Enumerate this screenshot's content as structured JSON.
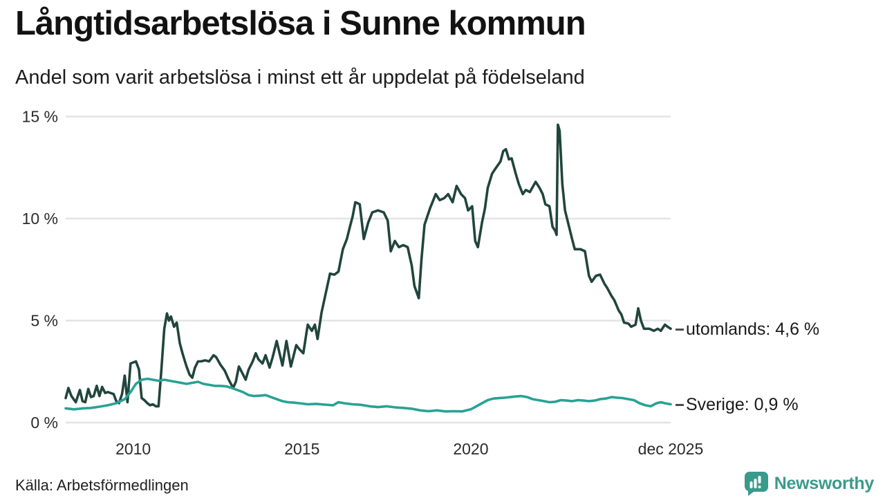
{
  "header": {
    "title": "Långtidsarbetslösa i Sunne kommun",
    "subtitle": "Andel som varit arbetslösa i minst ett år uppdelat på födelseland"
  },
  "footer": {
    "source": "Källa: Arbetsförmedlingen",
    "brand": "Newsworthy",
    "brand_icon": "bar-chart-speech-bubble-icon"
  },
  "colors": {
    "series_utomlands": "#20453c",
    "series_sverige": "#28a295",
    "grid": "#e3e3e3",
    "axis_text": "#2b2b2b",
    "label_dash": "#4d4d4d",
    "brand_teal": "#3a9a8c"
  },
  "chart_data": {
    "type": "line",
    "title": "Långtidsarbetslösa i Sunne kommun",
    "subtitle": "Andel som varit arbetslösa i minst ett år uppdelat på födelseland",
    "grid": "horizontal",
    "legend_position": "right-of-line-ends",
    "y_axis": {
      "unit": "%",
      "range": [
        0,
        15
      ],
      "ticks": [
        {
          "label": "0 %",
          "value": 0
        },
        {
          "label": "5 %",
          "value": 5
        },
        {
          "label": "10 %",
          "value": 10
        },
        {
          "label": "15 %",
          "value": 15
        }
      ]
    },
    "x_axis": {
      "range": [
        2008.0,
        2025.92
      ],
      "ticks": [
        {
          "label": "2010",
          "t": 2010
        },
        {
          "label": "2015",
          "t": 2015
        },
        {
          "label": "2020",
          "t": 2020
        },
        {
          "label": "dec 2025",
          "t": 2025.92
        }
      ]
    },
    "series": [
      {
        "name": "utomlands",
        "label": "utomlands: 4,6 %",
        "end_value": "4,6 %",
        "color_key": "series_utomlands",
        "points": [
          [
            2008.0,
            1.2
          ],
          [
            2008.08,
            1.7
          ],
          [
            2008.17,
            1.3
          ],
          [
            2008.3,
            1.0
          ],
          [
            2008.42,
            1.6
          ],
          [
            2008.5,
            1.05
          ],
          [
            2008.58,
            1.0
          ],
          [
            2008.67,
            1.65
          ],
          [
            2008.75,
            1.25
          ],
          [
            2008.83,
            1.3
          ],
          [
            2008.92,
            1.8
          ],
          [
            2009.0,
            1.3
          ],
          [
            2009.08,
            1.75
          ],
          [
            2009.17,
            1.45
          ],
          [
            2009.25,
            1.5
          ],
          [
            2009.33,
            1.45
          ],
          [
            2009.42,
            1.4
          ],
          [
            2009.5,
            1.05
          ],
          [
            2009.58,
            0.95
          ],
          [
            2009.67,
            1.4
          ],
          [
            2009.75,
            2.3
          ],
          [
            2009.83,
            1.0
          ],
          [
            2009.92,
            2.9
          ],
          [
            2010.0,
            2.95
          ],
          [
            2010.08,
            3.0
          ],
          [
            2010.17,
            2.6
          ],
          [
            2010.25,
            1.2
          ],
          [
            2010.33,
            1.1
          ],
          [
            2010.42,
            0.95
          ],
          [
            2010.5,
            0.85
          ],
          [
            2010.58,
            0.9
          ],
          [
            2010.67,
            0.8
          ],
          [
            2010.75,
            0.8
          ],
          [
            2010.83,
            2.5
          ],
          [
            2010.92,
            4.6
          ],
          [
            2011.0,
            5.35
          ],
          [
            2011.06,
            5.0
          ],
          [
            2011.12,
            5.2
          ],
          [
            2011.21,
            4.7
          ],
          [
            2011.29,
            4.9
          ],
          [
            2011.38,
            3.9
          ],
          [
            2011.46,
            3.4
          ],
          [
            2011.58,
            2.75
          ],
          [
            2011.67,
            2.35
          ],
          [
            2011.75,
            2.2
          ],
          [
            2011.83,
            2.7
          ],
          [
            2011.92,
            3.0
          ],
          [
            2012.0,
            3.0
          ],
          [
            2012.13,
            3.05
          ],
          [
            2012.25,
            3.0
          ],
          [
            2012.38,
            3.3
          ],
          [
            2012.46,
            3.2
          ],
          [
            2012.58,
            2.85
          ],
          [
            2012.71,
            2.55
          ],
          [
            2012.83,
            2.1
          ],
          [
            2012.96,
            1.7
          ],
          [
            2013.04,
            2.0
          ],
          [
            2013.13,
            2.75
          ],
          [
            2013.21,
            2.5
          ],
          [
            2013.33,
            2.1
          ],
          [
            2013.42,
            2.6
          ],
          [
            2013.54,
            3.0
          ],
          [
            2013.63,
            3.4
          ],
          [
            2013.71,
            3.1
          ],
          [
            2013.83,
            2.9
          ],
          [
            2013.92,
            3.3
          ],
          [
            2014.04,
            2.7
          ],
          [
            2014.13,
            3.2
          ],
          [
            2014.25,
            4.0
          ],
          [
            2014.42,
            2.8
          ],
          [
            2014.54,
            4.0
          ],
          [
            2014.67,
            2.75
          ],
          [
            2014.83,
            3.8
          ],
          [
            2014.92,
            3.6
          ],
          [
            2015.04,
            3.4
          ],
          [
            2015.17,
            4.8
          ],
          [
            2015.29,
            4.5
          ],
          [
            2015.38,
            4.8
          ],
          [
            2015.46,
            4.1
          ],
          [
            2015.58,
            5.4
          ],
          [
            2015.71,
            6.4
          ],
          [
            2015.83,
            7.3
          ],
          [
            2015.96,
            7.25
          ],
          [
            2016.08,
            7.4
          ],
          [
            2016.21,
            8.5
          ],
          [
            2016.33,
            9.0
          ],
          [
            2016.42,
            9.6
          ],
          [
            2016.5,
            10.1
          ],
          [
            2016.58,
            10.8
          ],
          [
            2016.71,
            10.7
          ],
          [
            2016.83,
            9.0
          ],
          [
            2016.96,
            9.8
          ],
          [
            2017.08,
            10.3
          ],
          [
            2017.25,
            10.4
          ],
          [
            2017.42,
            10.3
          ],
          [
            2017.54,
            9.9
          ],
          [
            2017.63,
            8.4
          ],
          [
            2017.75,
            8.9
          ],
          [
            2017.87,
            8.6
          ],
          [
            2018.0,
            8.7
          ],
          [
            2018.13,
            8.6
          ],
          [
            2018.25,
            7.7
          ],
          [
            2018.33,
            6.7
          ],
          [
            2018.46,
            6.1
          ],
          [
            2018.54,
            8.0
          ],
          [
            2018.63,
            9.7
          ],
          [
            2018.79,
            10.5
          ],
          [
            2018.96,
            11.2
          ],
          [
            2019.08,
            10.9
          ],
          [
            2019.21,
            11.0
          ],
          [
            2019.33,
            11.2
          ],
          [
            2019.46,
            10.8
          ],
          [
            2019.58,
            11.6
          ],
          [
            2019.71,
            11.2
          ],
          [
            2019.83,
            11.0
          ],
          [
            2019.92,
            10.4
          ],
          [
            2020.04,
            10.6
          ],
          [
            2020.13,
            8.9
          ],
          [
            2020.21,
            8.6
          ],
          [
            2020.33,
            9.8
          ],
          [
            2020.42,
            10.5
          ],
          [
            2020.5,
            11.5
          ],
          [
            2020.63,
            12.2
          ],
          [
            2020.75,
            12.5
          ],
          [
            2020.88,
            12.8
          ],
          [
            2020.96,
            13.3
          ],
          [
            2021.04,
            13.4
          ],
          [
            2021.13,
            12.9
          ],
          [
            2021.21,
            12.95
          ],
          [
            2021.33,
            12.2
          ],
          [
            2021.42,
            11.7
          ],
          [
            2021.54,
            11.2
          ],
          [
            2021.63,
            11.4
          ],
          [
            2021.75,
            11.3
          ],
          [
            2021.92,
            11.8
          ],
          [
            2022.04,
            11.5
          ],
          [
            2022.13,
            11.2
          ],
          [
            2022.21,
            10.7
          ],
          [
            2022.33,
            10.6
          ],
          [
            2022.42,
            9.6
          ],
          [
            2022.5,
            9.4
          ],
          [
            2022.54,
            9.2
          ],
          [
            2022.58,
            14.6
          ],
          [
            2022.63,
            14.3
          ],
          [
            2022.71,
            11.7
          ],
          [
            2022.79,
            10.4
          ],
          [
            2022.88,
            9.8
          ],
          [
            2023.0,
            9.0
          ],
          [
            2023.08,
            8.5
          ],
          [
            2023.25,
            8.5
          ],
          [
            2023.38,
            8.4
          ],
          [
            2023.5,
            7.2
          ],
          [
            2023.58,
            6.9
          ],
          [
            2023.71,
            7.2
          ],
          [
            2023.83,
            7.25
          ],
          [
            2023.96,
            6.8
          ],
          [
            2024.04,
            6.6
          ],
          [
            2024.17,
            6.2
          ],
          [
            2024.25,
            6.0
          ],
          [
            2024.38,
            5.5
          ],
          [
            2024.46,
            5.3
          ],
          [
            2024.54,
            4.9
          ],
          [
            2024.67,
            4.85
          ],
          [
            2024.75,
            4.7
          ],
          [
            2024.88,
            4.8
          ],
          [
            2024.96,
            5.6
          ],
          [
            2025.04,
            5.0
          ],
          [
            2025.13,
            4.6
          ],
          [
            2025.29,
            4.6
          ],
          [
            2025.42,
            4.5
          ],
          [
            2025.54,
            4.6
          ],
          [
            2025.63,
            4.5
          ],
          [
            2025.75,
            4.8
          ],
          [
            2025.83,
            4.7
          ],
          [
            2025.92,
            4.6
          ]
        ]
      },
      {
        "name": "Sverige",
        "label": "Sverige: 0,9 %",
        "end_value": "0,9 %",
        "color_key": "series_sverige",
        "points": [
          [
            2008.0,
            0.7
          ],
          [
            2008.25,
            0.65
          ],
          [
            2008.5,
            0.7
          ],
          [
            2008.75,
            0.72
          ],
          [
            2009.0,
            0.78
          ],
          [
            2009.25,
            0.85
          ],
          [
            2009.5,
            0.95
          ],
          [
            2009.75,
            1.15
          ],
          [
            2009.92,
            1.5
          ],
          [
            2010.08,
            1.9
          ],
          [
            2010.25,
            2.1
          ],
          [
            2010.42,
            2.15
          ],
          [
            2010.58,
            2.1
          ],
          [
            2010.75,
            2.05
          ],
          [
            2010.92,
            2.1
          ],
          [
            2011.08,
            2.05
          ],
          [
            2011.25,
            2.0
          ],
          [
            2011.42,
            1.95
          ],
          [
            2011.58,
            1.9
          ],
          [
            2011.75,
            1.95
          ],
          [
            2011.92,
            2.0
          ],
          [
            2012.08,
            1.9
          ],
          [
            2012.25,
            1.85
          ],
          [
            2012.42,
            1.8
          ],
          [
            2012.58,
            1.8
          ],
          [
            2012.75,
            1.78
          ],
          [
            2012.92,
            1.7
          ],
          [
            2013.08,
            1.6
          ],
          [
            2013.25,
            1.5
          ],
          [
            2013.42,
            1.35
          ],
          [
            2013.58,
            1.3
          ],
          [
            2013.75,
            1.32
          ],
          [
            2013.92,
            1.35
          ],
          [
            2014.08,
            1.25
          ],
          [
            2014.25,
            1.15
          ],
          [
            2014.42,
            1.05
          ],
          [
            2014.58,
            1.0
          ],
          [
            2014.75,
            0.98
          ],
          [
            2014.92,
            0.95
          ],
          [
            2015.17,
            0.9
          ],
          [
            2015.42,
            0.92
          ],
          [
            2015.67,
            0.88
          ],
          [
            2015.92,
            0.85
          ],
          [
            2016.08,
            1.0
          ],
          [
            2016.25,
            0.95
          ],
          [
            2016.5,
            0.9
          ],
          [
            2016.75,
            0.87
          ],
          [
            2017.0,
            0.8
          ],
          [
            2017.25,
            0.76
          ],
          [
            2017.5,
            0.8
          ],
          [
            2017.75,
            0.75
          ],
          [
            2018.0,
            0.72
          ],
          [
            2018.25,
            0.68
          ],
          [
            2018.5,
            0.6
          ],
          [
            2018.75,
            0.56
          ],
          [
            2019.0,
            0.6
          ],
          [
            2019.25,
            0.55
          ],
          [
            2019.5,
            0.56
          ],
          [
            2019.75,
            0.55
          ],
          [
            2020.0,
            0.65
          ],
          [
            2020.17,
            0.8
          ],
          [
            2020.33,
            0.95
          ],
          [
            2020.5,
            1.1
          ],
          [
            2020.67,
            1.18
          ],
          [
            2020.83,
            1.2
          ],
          [
            2021.0,
            1.22
          ],
          [
            2021.17,
            1.25
          ],
          [
            2021.33,
            1.28
          ],
          [
            2021.5,
            1.3
          ],
          [
            2021.67,
            1.25
          ],
          [
            2021.83,
            1.15
          ],
          [
            2022.0,
            1.1
          ],
          [
            2022.17,
            1.05
          ],
          [
            2022.33,
            1.0
          ],
          [
            2022.5,
            1.02
          ],
          [
            2022.67,
            1.1
          ],
          [
            2022.83,
            1.08
          ],
          [
            2023.0,
            1.05
          ],
          [
            2023.17,
            1.1
          ],
          [
            2023.33,
            1.08
          ],
          [
            2023.5,
            1.05
          ],
          [
            2023.67,
            1.08
          ],
          [
            2023.83,
            1.15
          ],
          [
            2024.0,
            1.18
          ],
          [
            2024.17,
            1.25
          ],
          [
            2024.33,
            1.22
          ],
          [
            2024.5,
            1.2
          ],
          [
            2024.67,
            1.15
          ],
          [
            2024.83,
            1.1
          ],
          [
            2025.0,
            0.95
          ],
          [
            2025.17,
            0.85
          ],
          [
            2025.33,
            0.8
          ],
          [
            2025.5,
            0.95
          ],
          [
            2025.63,
            1.0
          ],
          [
            2025.75,
            0.95
          ],
          [
            2025.92,
            0.9
          ]
        ]
      }
    ]
  }
}
